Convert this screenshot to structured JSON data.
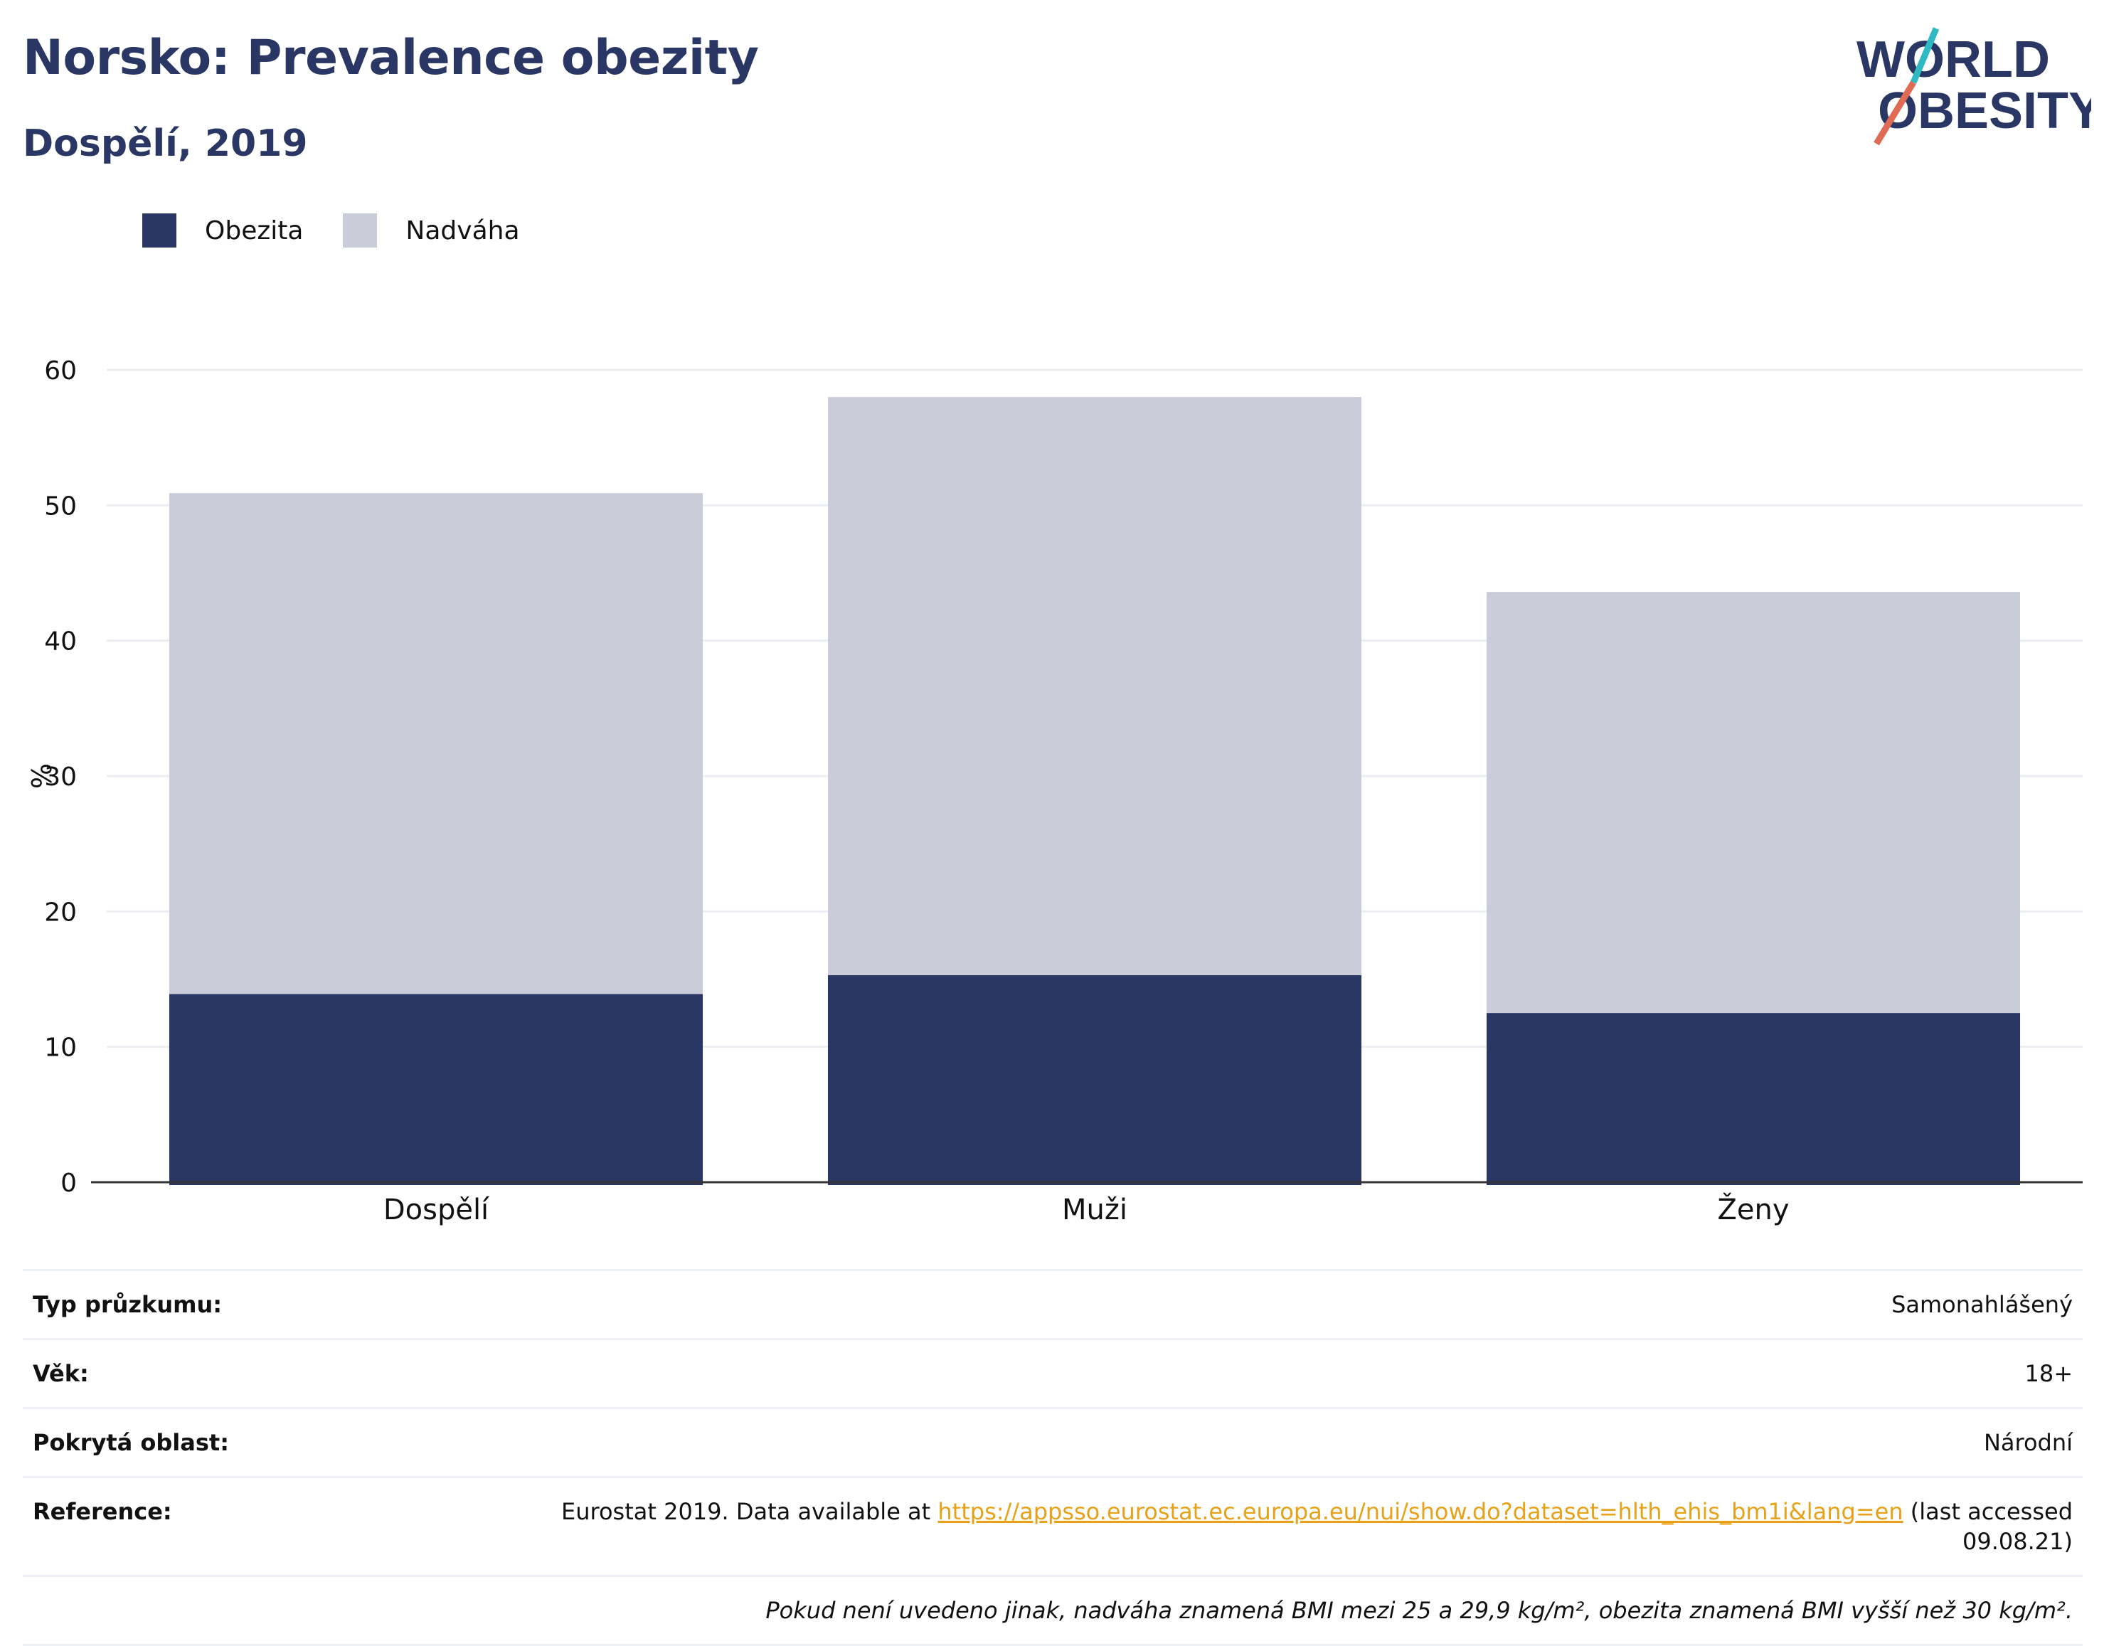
{
  "title": "Norsko: Prevalence obezity",
  "subtitle": "Dospělí, 2019",
  "logo": {
    "line1": "WORLD",
    "line2": "OBESITY"
  },
  "legend": [
    {
      "label": "Obezita",
      "color": "#2a3764"
    },
    {
      "label": "Nadváha",
      "color": "#cacdd9"
    }
  ],
  "chart_data": {
    "type": "bar",
    "stacked": true,
    "categories": [
      "Dospělí",
      "Muži",
      "Ženy"
    ],
    "series": [
      {
        "name": "Obezita",
        "values": [
          13.9,
          15.3,
          12.5
        ],
        "color": "#2a3764"
      },
      {
        "name": "Nadváha",
        "values": [
          37.0,
          42.7,
          31.1
        ],
        "color": "#cacdd9"
      }
    ],
    "ylabel": "%",
    "ylim": [
      0,
      60
    ],
    "yticks": [
      0,
      10,
      20,
      30,
      40,
      50,
      60
    ],
    "grid": true
  },
  "info": {
    "survey_type": {
      "label": "Typ průzkumu:",
      "value": "Samonahlášený"
    },
    "age": {
      "label": "Věk:",
      "value": "18+"
    },
    "area": {
      "label": "Pokrytá oblast:",
      "value": "Národní"
    },
    "reference": {
      "label": "Reference:",
      "prefix": "Eurostat 2019. Data available at ",
      "link": "https://appsso.eurostat.ec.europa.eu/nui/show.do?dataset=hlth_ehis_bm1i&lang=en",
      "suffix": " (last accessed",
      "suffix2": "09.08.21)"
    },
    "note": "Pokud není uvedeno jinak, nadváha znamená BMI mezi 25 a 29,9 kg/m², obezita znamená BMI vyšší než 30 kg/m²."
  }
}
